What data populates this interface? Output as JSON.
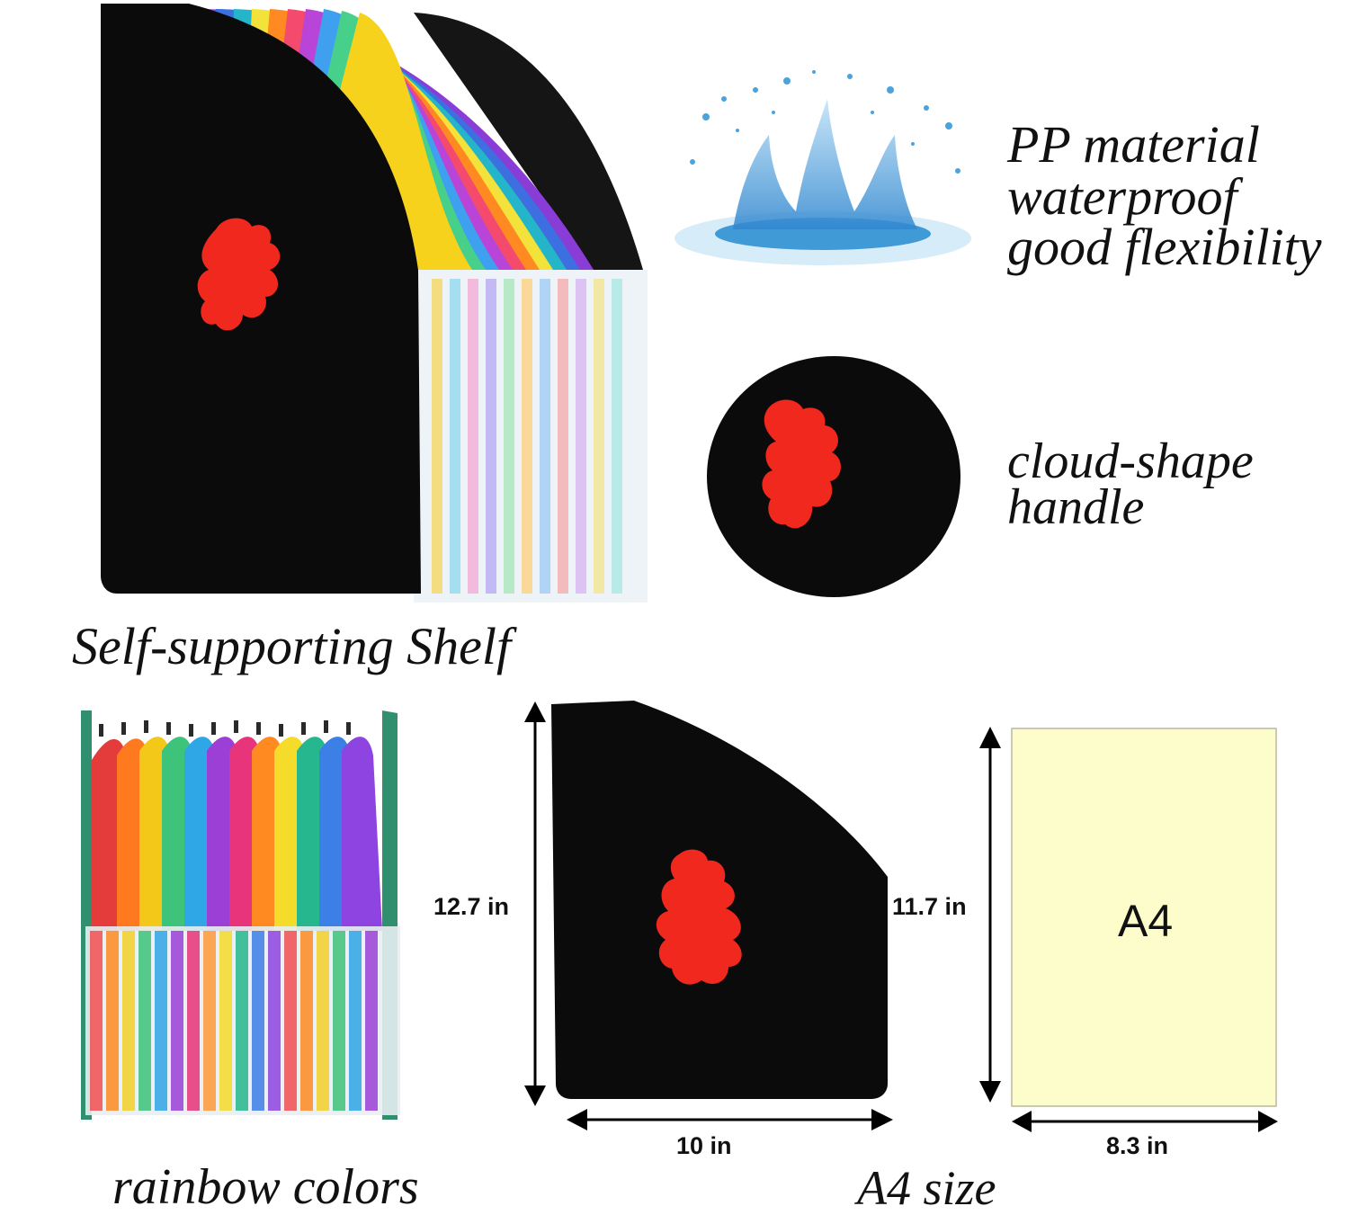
{
  "features": {
    "material_line1": "PP material",
    "material_line2": "waterproof",
    "material_line3": "good flexibility",
    "handle_line1": "cloud-shape",
    "handle_line2": "handle",
    "shelf": "Self-supporting Shelf",
    "rainbow": "rainbow colors",
    "a4_size": "A4 size"
  },
  "dimensions": {
    "organizer_height": "12.7 in",
    "organizer_width": "10 in",
    "paper_height": "11.7 in",
    "paper_width": "8.3 in",
    "paper_label": "A4"
  },
  "colors": {
    "organizer_body": "#0b0b0b",
    "handle": "#f0281e",
    "paper": "#fdfdcc",
    "water": "#3f9ad6"
  },
  "icons": {
    "splash": "water-splash-icon",
    "handle": "cloud-handle-icon"
  }
}
